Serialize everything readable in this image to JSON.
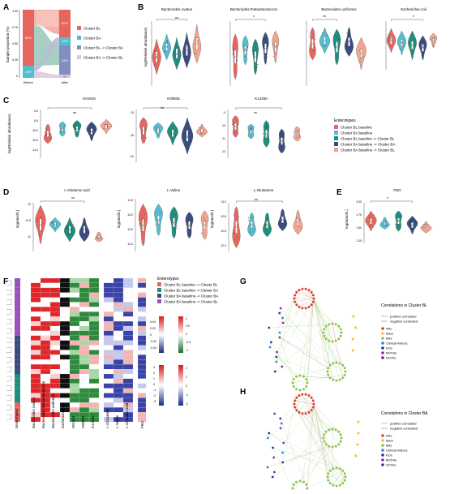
{
  "colors": {
    "bl": "#e8655d",
    "ba": "#52bfd0",
    "bl_ba": "#1f8e7e",
    "ba_ba": "#3a4d80",
    "ba_bl": "#f2a48e",
    "light_bl": "#f3a99c",
    "light_ba": "#9fd8db"
  },
  "panels": {
    "A": "A",
    "B": "B",
    "C": "C",
    "D": "D",
    "E": "E",
    "F": "F",
    "G": "G",
    "H": "H"
  },
  "panel_a": {
    "ylabel": "Sample proportion (%)",
    "xlabels": [
      "Before",
      "After"
    ],
    "yticks": [
      "0",
      "0.25",
      "0.50",
      "0.75",
      "1.00"
    ],
    "before": {
      "bl_pct": "84%",
      "ba_pct": "16%"
    },
    "after": {
      "p1": "60%",
      "p2": "12%",
      "p3": "44%",
      "p4": "4%"
    },
    "legend": [
      "Cluster BL",
      "Cluster BA",
      "Cluster BL -> Cluster BA",
      "Cluster BA -> Cluster BL"
    ]
  },
  "panel_b": {
    "ylabel": "log(Relative abundance)",
    "charts": [
      {
        "title": "Bacteroides ovatus",
        "sig": "ns"
      },
      {
        "title": "Bacteroides thetaiotaomicron",
        "sig": "*"
      },
      {
        "title": "Bacteroides uniformis",
        "sig": "**"
      },
      {
        "title": "Escherichia coli",
        "sig": "*"
      }
    ]
  },
  "panel_c": {
    "ylabel": "log(Relative abundance)",
    "charts": [
      {
        "title": "K01915",
        "sig": "ns",
        "yticks": [
          "-9.0",
          "-9.5",
          "-10.0",
          "-10.5",
          "-11.0"
        ]
      },
      {
        "title": "K00835",
        "sig": "ns",
        "yticks": [
          "-10",
          "-15",
          "-20"
        ]
      },
      {
        "title": "K14260",
        "sig": "**",
        "yticks": [
          "-9",
          "-10",
          "-11",
          "-12"
        ]
      }
    ],
    "legend_title": "Enterotypes",
    "legend": [
      "Cluster BL baseline",
      "Cluster BA baseline",
      "Cluster BL baseline -> Cluster BL",
      "Cluster BA baseline -> Cluster BA",
      "Cluster BA baseline -> Cluster BL"
    ]
  },
  "panel_d": {
    "ylabel": "log(nmol/L)",
    "charts": [
      {
        "title": "L-Glutamic acid",
        "sig": "**",
        "yticks": [
          "12",
          "11.5",
          "11"
        ]
      },
      {
        "title": "L-Valine",
        "sig": "ns",
        "yticks": [
          "13.5",
          "13.0",
          "12.5",
          "12.0"
        ]
      },
      {
        "title": "L-Glutamine",
        "sig": "ns",
        "yticks": [
          "13.0",
          "12.8",
          "12.6",
          "12.4"
        ]
      }
    ]
  },
  "panel_e": {
    "title": "FBG",
    "sig": "*",
    "ylabel": "log(mmol/L)",
    "yticks": [
      "2.00",
      "1.75",
      "1.50",
      "1.25"
    ]
  },
  "panel_f": {
    "legend_title": "Enterotypes",
    "legend": [
      "Cluster BL baseline -> Cluster BL",
      "Cluster BL baseline -> Cluster BA",
      "Cluster BA baseline -> Cluster BA",
      "Cluster BA baseline -> Cluster BL"
    ],
    "scale1": [
      "0.04",
      "0.02",
      "0",
      "-0.02",
      "-0.04"
    ],
    "scale2": [
      "1",
      "0.5",
      "0",
      "-0.5",
      "-1"
    ],
    "scale3": [
      "3",
      "2",
      "1",
      "0",
      "-1",
      "-2",
      "-3"
    ],
    "scale4": [
      "2",
      "1",
      "0",
      "-1",
      "-2"
    ],
    "columns": [
      "Enterotypes",
      "Bacteroides ovatus",
      "Bacteroides thetaiotaomicron",
      "Bacteroides uniformis",
      "Escherichia coli",
      "K01915",
      "K00835",
      "K14260",
      "L-Glutamine",
      "L-Valine",
      "L-Glutamic acid",
      "FBG"
    ]
  },
  "panel_g": {
    "title": "Correlations in Cluster BL",
    "legend_lines": [
      "positive correlated",
      "negative correlated"
    ],
    "legend": [
      "AAs",
      "Bacs",
      "BAs",
      "Clinical indices",
      "KOs",
      "MCFAs",
      "SCFAs"
    ]
  },
  "panel_h": {
    "title": "Correlations in Cluster BA",
    "legend_lines": [
      "positive correlated",
      "negative correlated"
    ],
    "legend": [
      "AAs",
      "Bacs",
      "BAs",
      "Clinical indices",
      "KOs",
      "MCFAs",
      "SCFAs"
    ]
  }
}
